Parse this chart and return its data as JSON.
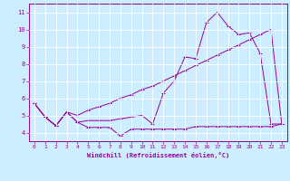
{
  "xlabel": "Windchill (Refroidissement éolien,°C)",
  "background_color": "#cceeff",
  "line_color": "#990099",
  "xlim": [
    -0.5,
    23.5
  ],
  "ylim": [
    3.5,
    11.5
  ],
  "xticks": [
    0,
    1,
    2,
    3,
    4,
    5,
    6,
    7,
    8,
    9,
    10,
    11,
    12,
    13,
    14,
    15,
    16,
    17,
    18,
    19,
    20,
    21,
    22,
    23
  ],
  "yticks": [
    4,
    5,
    6,
    7,
    8,
    9,
    10,
    11
  ],
  "grid_color": "#ffffff",
  "series1_x": [
    0,
    1,
    2,
    3,
    4,
    5,
    6,
    7,
    8,
    9,
    10,
    11,
    12,
    13,
    14,
    15,
    16,
    17,
    18,
    19,
    20,
    21,
    22,
    23
  ],
  "series1_y": [
    5.7,
    4.9,
    4.4,
    5.2,
    4.6,
    4.3,
    4.3,
    4.3,
    3.8,
    4.2,
    4.2,
    4.2,
    4.2,
    4.2,
    4.2,
    4.35,
    4.35,
    4.35,
    4.35,
    4.35,
    4.35,
    4.35,
    4.35,
    4.5
  ],
  "series2_x": [
    0,
    1,
    2,
    3,
    4,
    5,
    6,
    7,
    8,
    9,
    10,
    11,
    12,
    13,
    14,
    15,
    16,
    17,
    18,
    19,
    20,
    21,
    22,
    23
  ],
  "series2_y": [
    5.7,
    4.9,
    4.4,
    5.2,
    4.6,
    4.7,
    4.7,
    4.7,
    4.8,
    4.9,
    5.0,
    4.5,
    6.3,
    7.0,
    8.4,
    8.3,
    10.4,
    11.0,
    10.2,
    9.7,
    9.8,
    8.6,
    4.5,
    4.5
  ],
  "series3_x": [
    0,
    1,
    2,
    3,
    4,
    5,
    6,
    7,
    8,
    9,
    10,
    11,
    12,
    13,
    14,
    15,
    16,
    17,
    18,
    19,
    20,
    21,
    22,
    23
  ],
  "series3_y": [
    5.7,
    4.9,
    4.4,
    5.2,
    5.0,
    5.3,
    5.5,
    5.7,
    6.0,
    6.2,
    6.5,
    6.7,
    7.0,
    7.3,
    7.6,
    7.9,
    8.2,
    8.5,
    8.8,
    9.1,
    9.4,
    9.7,
    10.0,
    4.5
  ]
}
